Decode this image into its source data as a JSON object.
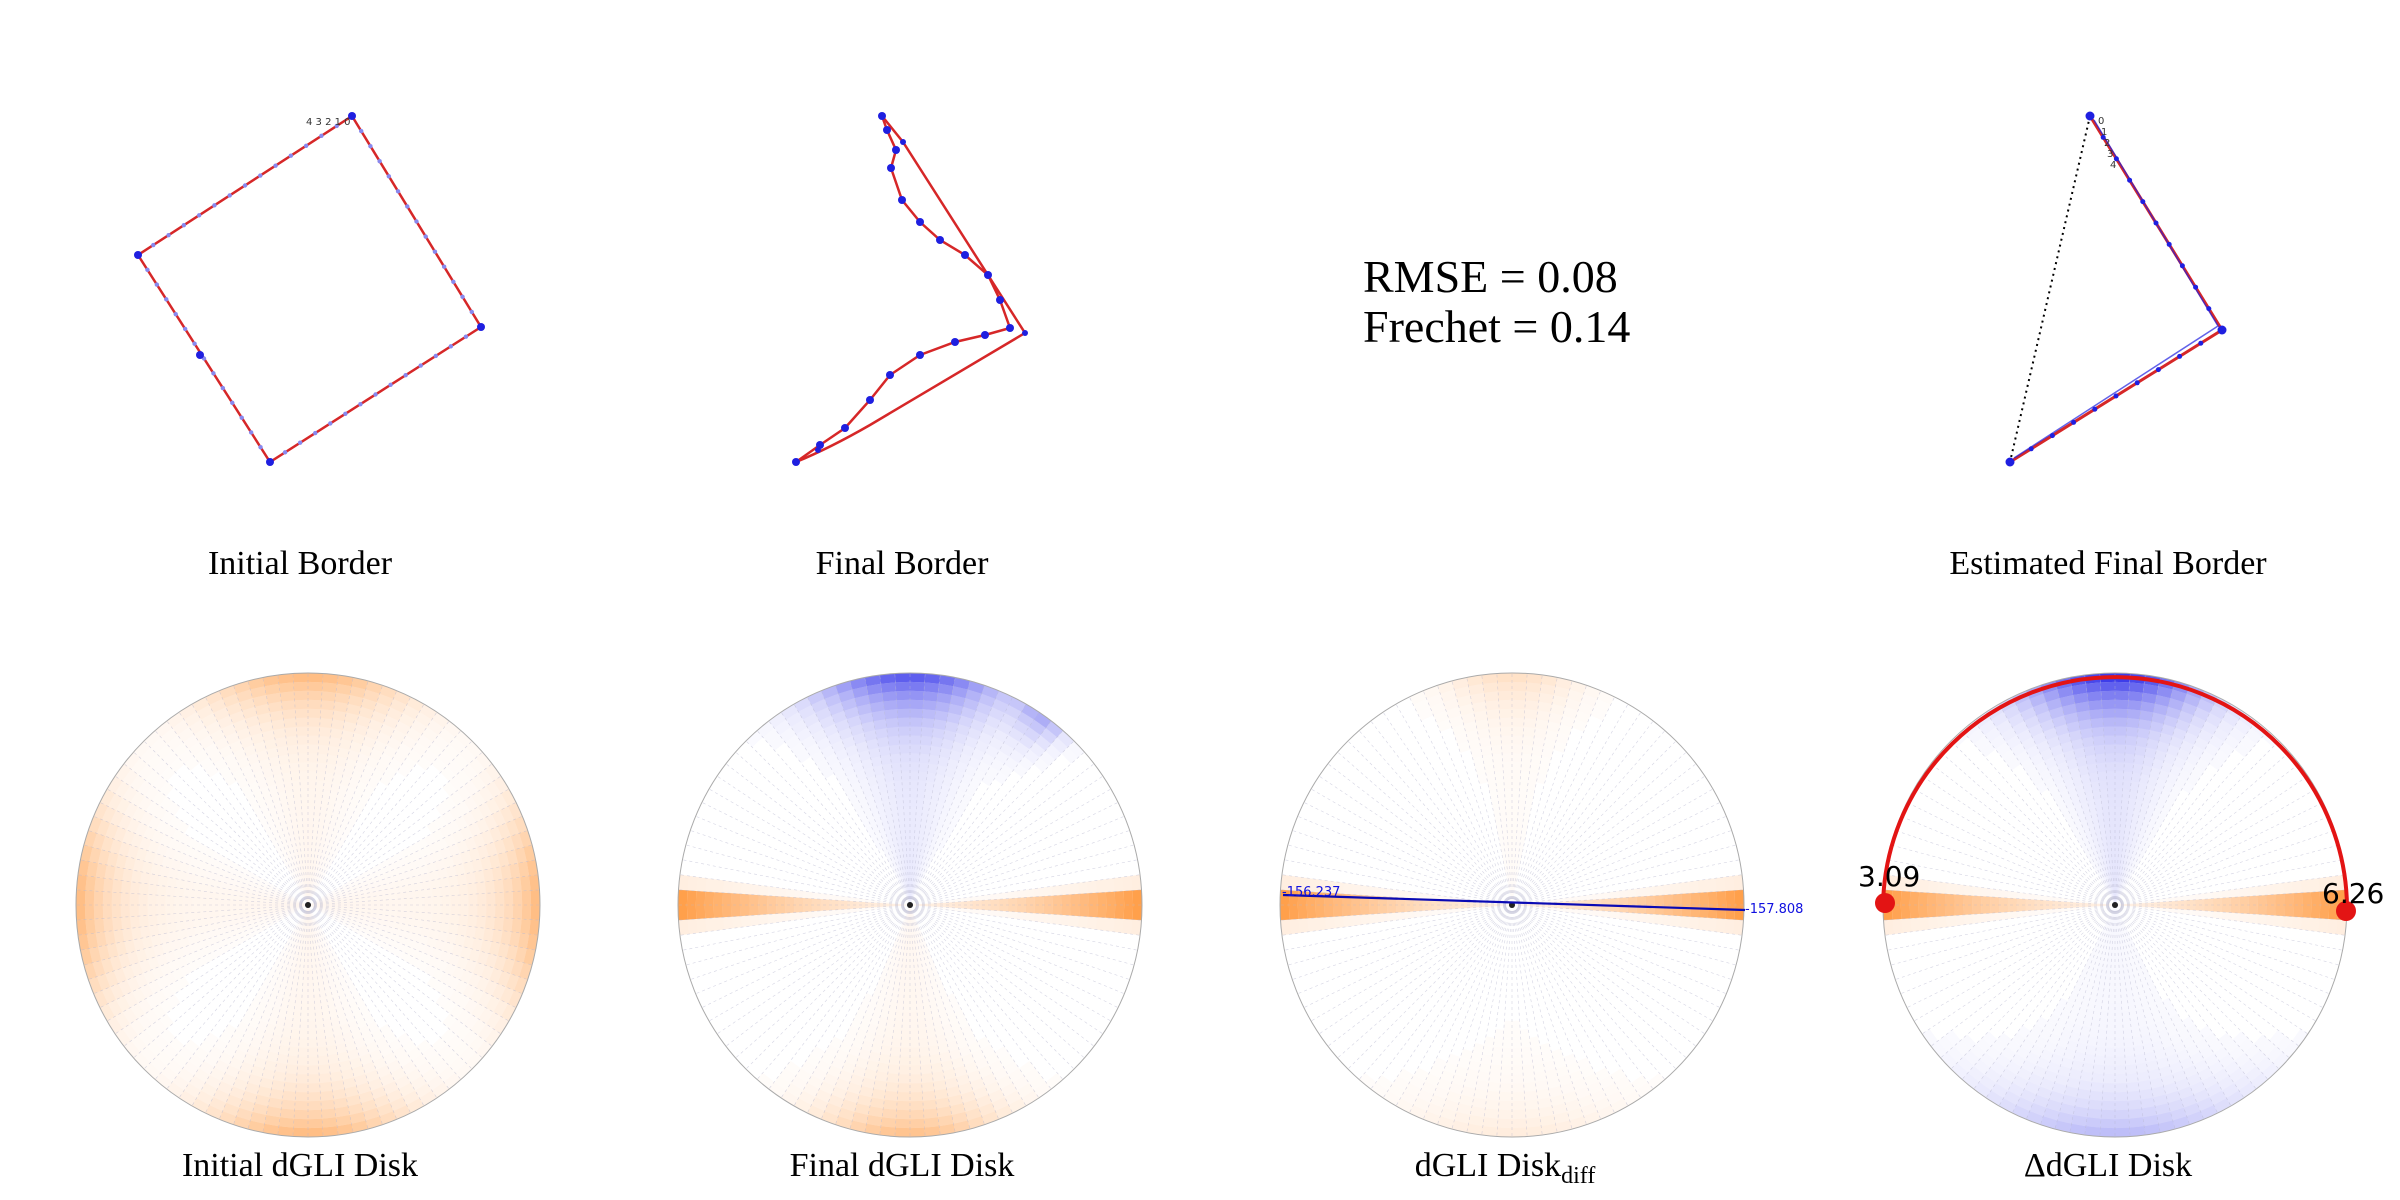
{
  "panels": {
    "initial_border": "Initial Border",
    "final_border": "Final Border",
    "estimated_final_border": "Estimated Final Border",
    "initial_disk": "Initial dGLI Disk",
    "final_disk": "Final dGLI Disk",
    "diff_disk_main": "dGLI Disk",
    "diff_disk_sub": "diff",
    "delta_disk": "ΔdGLI Disk"
  },
  "metrics": {
    "rmse": "RMSE = 0.08",
    "frechet": "Frechet = 0.14"
  },
  "annotations": {
    "diff_left_value": "-156.237",
    "diff_right_value": "-157.808",
    "delta_left_value": "3.09",
    "delta_right_value": "6.26",
    "vertex_labels": [
      "0",
      "1",
      "2",
      "3",
      "4"
    ]
  },
  "colors": {
    "border_line": "#d62728",
    "border_points": "#1f1fe0",
    "orange": "#ff7f0e",
    "blue": "#1414e6",
    "arc_red": "#e31414",
    "diff_line": "#0a0ab4"
  }
}
